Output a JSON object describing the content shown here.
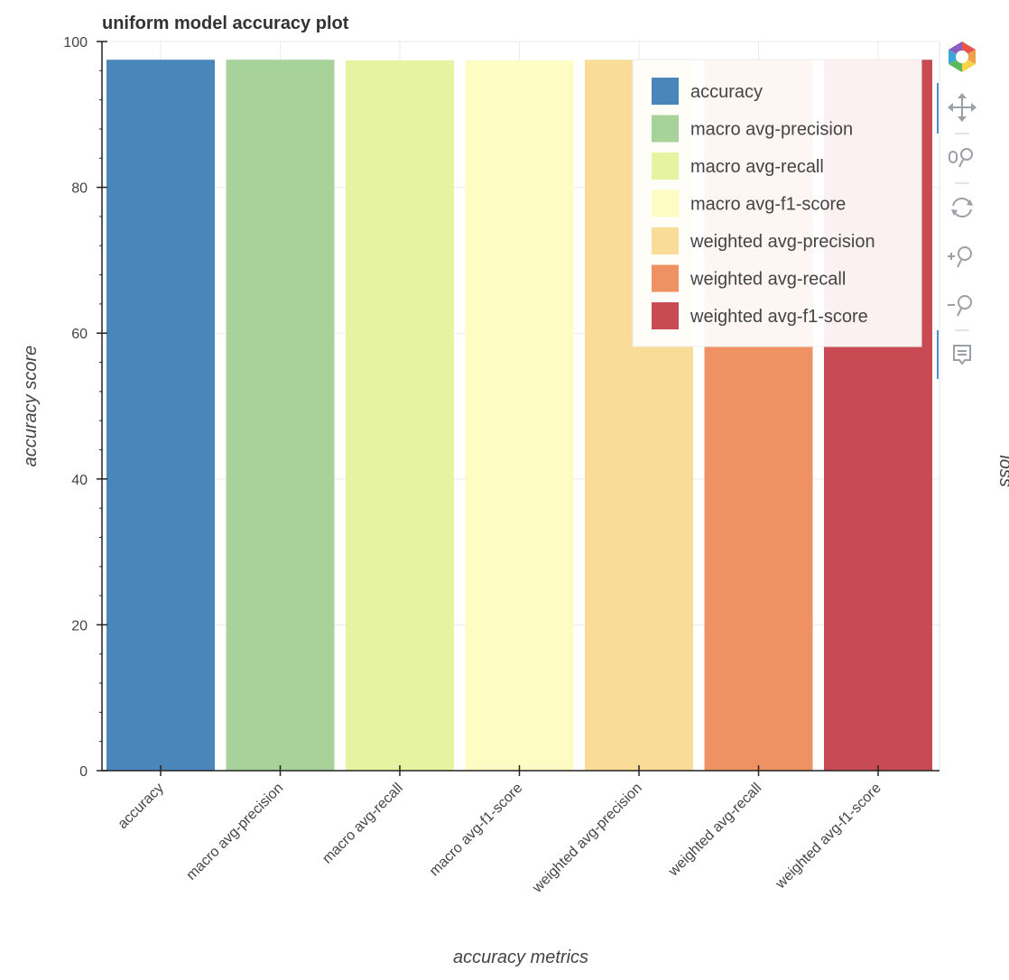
{
  "chart_data": {
    "type": "bar",
    "title": "uniform model accuracy plot",
    "xlabel": "accuracy metrics",
    "ylabel": "accuracy score",
    "right_axis_label": "loss",
    "categories": [
      "accuracy",
      "macro avg-precision",
      "macro avg-recall",
      "macro avg-f1-score",
      "weighted avg-precision",
      "weighted avg-recall",
      "weighted avg-f1-score"
    ],
    "values": [
      97.5,
      97.5,
      97.4,
      97.4,
      97.5,
      97.5,
      97.5
    ],
    "colors": [
      "#4a86b9",
      "#a7d29a",
      "#e6f3a1",
      "#fdfcc2",
      "#f8dc97",
      "#ee9264",
      "#c84a53"
    ],
    "ylim": [
      0,
      100
    ],
    "yticks": [
      0,
      20,
      40,
      60,
      80,
      100
    ],
    "grid": true,
    "legend": {
      "position": "top-right",
      "entries": [
        "accuracy",
        "macro avg-precision",
        "macro avg-recall",
        "macro avg-f1-score",
        "weighted avg-precision",
        "weighted avg-recall",
        "weighted avg-f1-score"
      ]
    }
  },
  "toolbar": {
    "tools": [
      "bokeh-logo-icon",
      "pan-icon",
      "box-zoom-icon",
      "reset-icon",
      "zoom-in-icon",
      "zoom-out-icon",
      "hover-icon"
    ]
  }
}
